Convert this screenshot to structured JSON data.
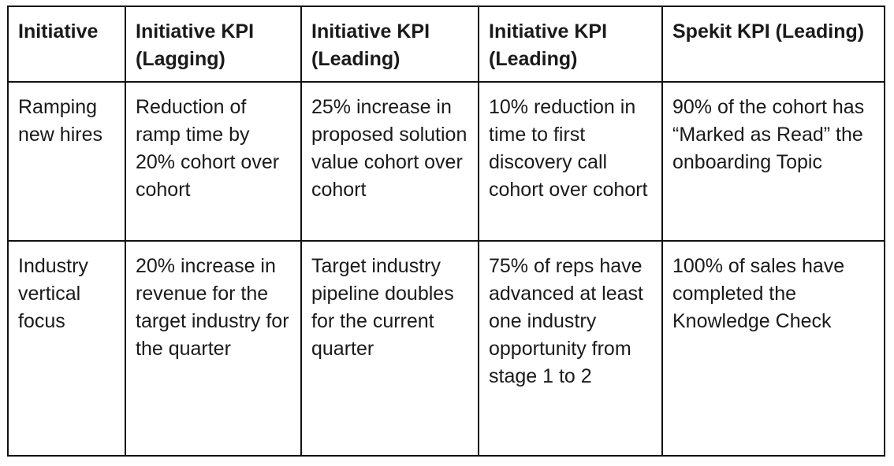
{
  "table": {
    "headers": [
      "Initiative",
      "Initiative KPI (Lagging)",
      "Initiative KPI (Leading)",
      "Initiative KPI (Leading)",
      "Spekit KPI (Leading)"
    ],
    "rows": [
      [
        "Ramping new hires",
        "Reduction of ramp time by 20% cohort over cohort",
        "25% increase in proposed solution value cohort over cohort",
        "10% reduction in time to first discovery call cohort over cohort",
        "90% of the cohort has “Marked as Read” the onboarding Topic"
      ],
      [
        "Industry vertical focus",
        "20% increase in revenue for the target industry for the quarter",
        "Target industry pipeline doubles for the current quarter",
        "75% of reps have advanced at least one industry opportunity from stage 1 to 2",
        "100% of sales have completed the Knowledge Check"
      ]
    ]
  }
}
